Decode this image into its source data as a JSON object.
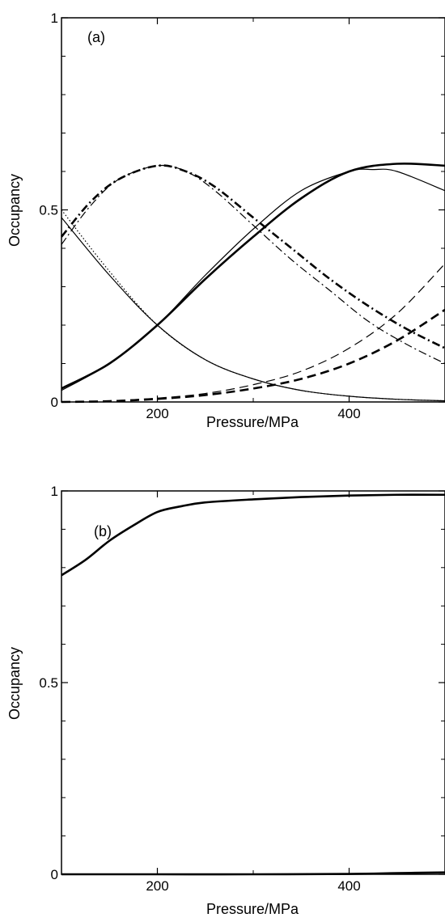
{
  "chart_data": [
    {
      "type": "line",
      "panel_label": "(a)",
      "xlabel": "Pressure/MPa",
      "ylabel": "Occupancy",
      "xlim": [
        100,
        500
      ],
      "ylim": [
        0,
        1
      ],
      "x_ticks": [
        200,
        400
      ],
      "y_ticks": [
        0,
        0.5,
        1
      ],
      "y_tick_labels": [
        "0",
        "0.5",
        "1"
      ],
      "grid": false,
      "series": [
        {
          "style": "solid-thin",
          "x": [
            100,
            150,
            200,
            250,
            300,
            350,
            400,
            450,
            500
          ],
          "y": [
            0.48,
            0.33,
            0.2,
            0.11,
            0.06,
            0.03,
            0.015,
            0.007,
            0.003
          ]
        },
        {
          "style": "dotted",
          "x": [
            100,
            150,
            200,
            250,
            300,
            350,
            400,
            450,
            500
          ],
          "y": [
            0.5,
            0.34,
            0.2,
            0.11,
            0.06,
            0.03,
            0.015,
            0.007,
            0.003
          ]
        },
        {
          "style": "dash-dot-thick",
          "x": [
            100,
            130,
            160,
            200,
            230,
            260,
            300,
            340,
            380,
            420,
            460,
            500
          ],
          "y": [
            0.43,
            0.52,
            0.58,
            0.615,
            0.6,
            0.56,
            0.48,
            0.4,
            0.32,
            0.25,
            0.19,
            0.14
          ]
        },
        {
          "style": "dash-dot-thin",
          "x": [
            100,
            130,
            160,
            200,
            230,
            260,
            300,
            340,
            380,
            420,
            460,
            500
          ],
          "y": [
            0.41,
            0.51,
            0.58,
            0.615,
            0.6,
            0.55,
            0.46,
            0.37,
            0.29,
            0.21,
            0.15,
            0.1
          ]
        },
        {
          "style": "solid-thick",
          "x": [
            100,
            150,
            200,
            250,
            300,
            350,
            400,
            450,
            500
          ],
          "y": [
            0.035,
            0.1,
            0.2,
            0.32,
            0.43,
            0.53,
            0.6,
            0.62,
            0.615
          ]
        },
        {
          "style": "solid-thin",
          "x": [
            100,
            150,
            200,
            250,
            300,
            350,
            400,
            425,
            450,
            500
          ],
          "y": [
            0.03,
            0.1,
            0.2,
            0.33,
            0.45,
            0.55,
            0.6,
            0.605,
            0.6,
            0.55
          ]
        },
        {
          "style": "dashed-thick",
          "x": [
            100,
            150,
            200,
            250,
            300,
            350,
            400,
            450,
            500
          ],
          "y": [
            0.0,
            0.002,
            0.008,
            0.018,
            0.035,
            0.06,
            0.1,
            0.16,
            0.24
          ]
        },
        {
          "style": "dashed-thin",
          "x": [
            100,
            150,
            200,
            250,
            300,
            350,
            400,
            450,
            500
          ],
          "y": [
            0.0,
            0.003,
            0.01,
            0.022,
            0.045,
            0.08,
            0.14,
            0.23,
            0.36
          ]
        }
      ]
    },
    {
      "type": "line",
      "panel_label": "(b)",
      "xlabel": "Pressure/MPa",
      "ylabel": "Occupancy",
      "xlim": [
        100,
        500
      ],
      "ylim": [
        0,
        1
      ],
      "x_ticks": [
        200,
        400
      ],
      "y_ticks": [
        0,
        0.5,
        1
      ],
      "y_tick_labels": [
        "0",
        "0.5",
        "1"
      ],
      "grid": false,
      "series": [
        {
          "style": "solid-thick",
          "x": [
            100,
            125,
            150,
            175,
            200,
            225,
            250,
            300,
            350,
            400,
            450,
            500
          ],
          "y": [
            0.78,
            0.82,
            0.87,
            0.91,
            0.945,
            0.96,
            0.97,
            0.978,
            0.984,
            0.988,
            0.99,
            0.99
          ]
        },
        {
          "style": "solid-thick",
          "x": [
            100,
            200,
            300,
            400,
            450,
            500
          ],
          "y": [
            0.0,
            0.0,
            0.0,
            0.001,
            0.003,
            0.005
          ]
        }
      ]
    }
  ]
}
